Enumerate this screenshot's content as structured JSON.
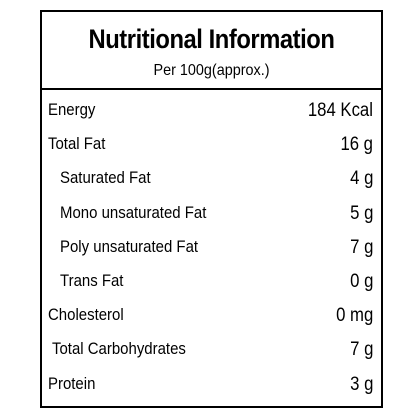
{
  "header": {
    "title": "Nutritional Information",
    "subtitle": "Per 100g(approx.)"
  },
  "table": {
    "rows": [
      [
        "Energy",
        "184 Kcal"
      ],
      [
        "Total Fat",
        "16 g"
      ],
      [
        "Saturated Fat",
        "4 g"
      ],
      [
        "Mono unsaturated Fat",
        "5 g"
      ],
      [
        "Poly unsaturated Fat",
        "7 g"
      ],
      [
        "Trans Fat",
        "0 g"
      ],
      [
        "Cholesterol",
        "0 mg"
      ],
      [
        "Total Carbohydrates",
        "7 g"
      ],
      [
        "Protein",
        "3 g"
      ]
    ]
  }
}
